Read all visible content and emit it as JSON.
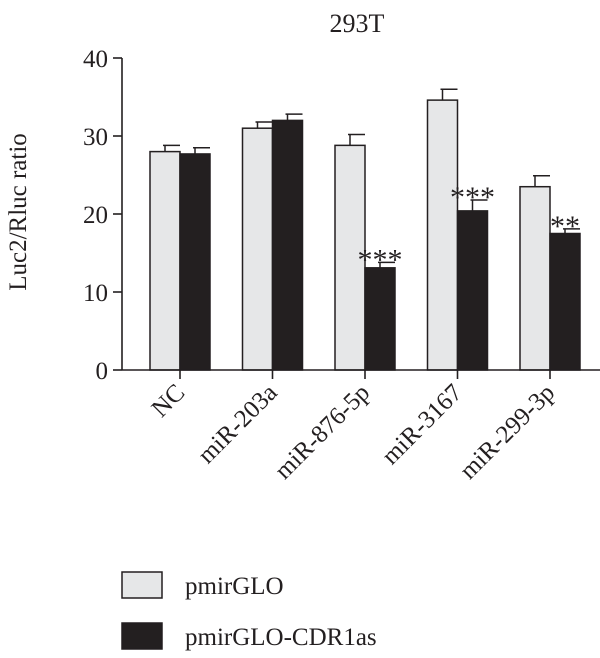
{
  "chart_data": {
    "type": "bar",
    "title": "293T",
    "xlabel": "",
    "ylabel": "Luc2/Rluc ratio",
    "ylim": [
      0,
      40
    ],
    "yticks": [
      0,
      10,
      20,
      30,
      40
    ],
    "categories": [
      "NC",
      "miR-203a",
      "miR-876-5p",
      "miR-3167",
      "miR-299-3p"
    ],
    "series": [
      {
        "name": "pmirGLO",
        "color": "#e6e7e8",
        "values": [
          28.0,
          31.0,
          28.8,
          34.6,
          23.5
        ],
        "errors": [
          0.8,
          0.8,
          1.4,
          1.4,
          1.4
        ]
      },
      {
        "name": "pmirGLO-CDR1as",
        "color": "#231f20",
        "values": [
          27.7,
          32.0,
          13.1,
          20.4,
          17.5
        ],
        "errors": [
          0.8,
          0.8,
          0.7,
          1.4,
          0.6
        ]
      }
    ],
    "annotations": [
      {
        "category": "miR-876-5p",
        "series": "pmirGLO-CDR1as",
        "text": "***"
      },
      {
        "category": "miR-3167",
        "series": "pmirGLO-CDR1as",
        "text": "***"
      },
      {
        "category": "miR-299-3p",
        "series": "pmirGLO-CDR1as",
        "text": "**"
      }
    ],
    "legend_position": "bottom-left",
    "grid": false
  }
}
